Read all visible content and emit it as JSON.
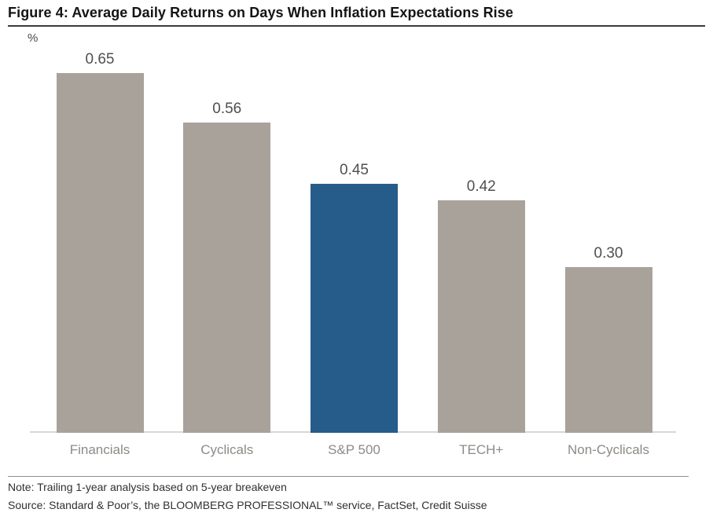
{
  "figure": {
    "title": "Figure 4: Average Daily Returns on Days When Inflation Expectations Rise",
    "y_axis_unit": "%",
    "note": "Note: Trailing 1-year analysis based on 5-year breakeven",
    "source": "Source: Standard & Poor’s, the BLOOMBERG PROFESSIONAL™ service, FactSet, Credit Suisse"
  },
  "chart_data": {
    "type": "bar",
    "title": "Figure 4: Average Daily Returns on Days When Inflation Expectations Rise",
    "xlabel": "",
    "ylabel": "%",
    "categories": [
      "Financials",
      "Cyclicals",
      "S&P 500",
      "TECH+",
      "Non-Cyclicals"
    ],
    "values": [
      0.65,
      0.56,
      0.45,
      0.42,
      0.3
    ],
    "value_labels": [
      "0.65",
      "0.56",
      "0.45",
      "0.42",
      "0.30"
    ],
    "ylim": [
      0,
      0.7
    ],
    "grid": false,
    "legend_position": "none",
    "highlight_index": 2,
    "colors": {
      "default_bar": "#a8a29b",
      "highlight_bar": "#265c8a",
      "value_label_text": "#4f4f4f",
      "category_label_text": "#8e8a86"
    }
  }
}
